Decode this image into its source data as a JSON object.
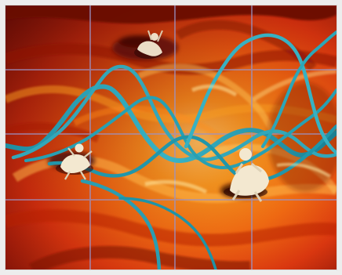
{
  "artwork": {
    "kind": "painting",
    "palette": {
      "background": "#ededed",
      "dark_red": "#7a0f07",
      "red": "#d8340f",
      "orange": "#f06a12",
      "yellow_orange": "#f8a021",
      "pale_yellow": "#ffd36b",
      "teal": "#2aa0b4",
      "lavender_grid": "#9b93c6",
      "figure_light": "#f3e8d0"
    },
    "elements": [
      "face-painting-background",
      "grid-lines",
      "teal-waves",
      "figure-left",
      "figure-right",
      "figure-top"
    ]
  }
}
